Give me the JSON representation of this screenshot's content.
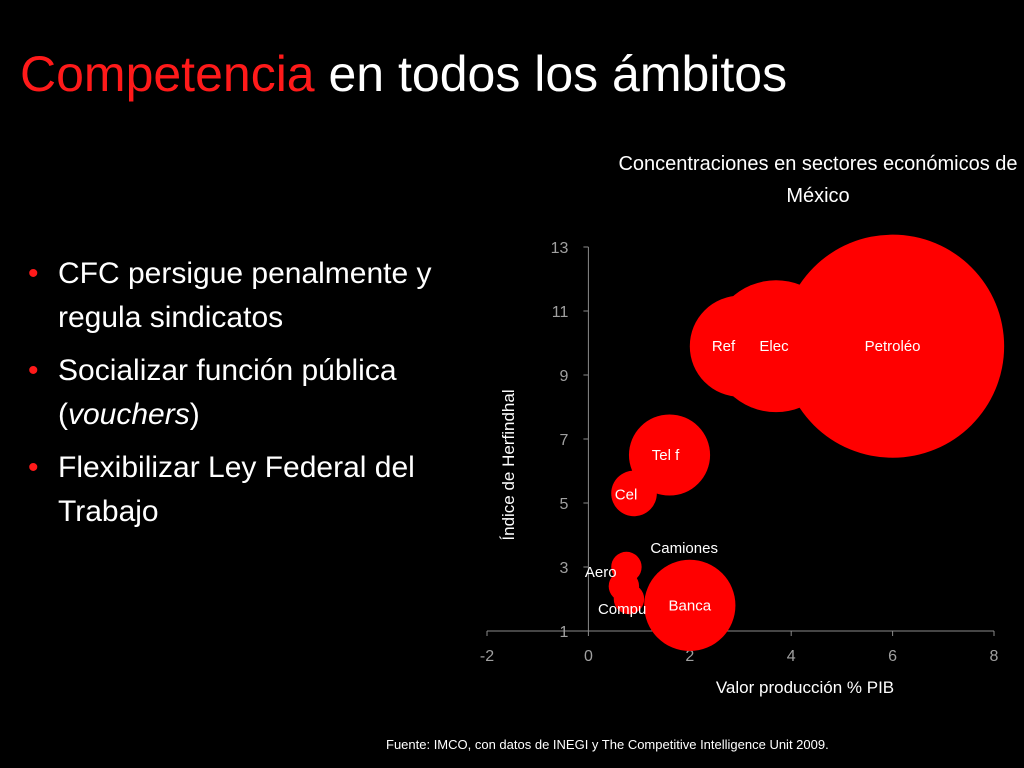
{
  "slide": {
    "title_accent": "Competencia",
    "title_rest": " en todos los ámbitos",
    "bullets": [
      {
        "text": "CFC persigue penalmente y regula sindicatos"
      },
      {
        "text_before": "Socializar función pública (",
        "text_italic": "vouchers",
        "text_after": ")"
      },
      {
        "text": "Flexibilizar Ley Federal del Trabajo"
      }
    ],
    "source": "Fuente: IMCO, con datos de INEGI  y The Competitive Intelligence Unit 2009."
  },
  "colors": {
    "accent": "#ff1a1a",
    "bubble": "#ff0000",
    "background": "#000000",
    "axis": "#8a8a8a"
  },
  "chart_data": {
    "type": "scatter",
    "subtype": "bubble",
    "title": "Concentraciones en sectores económicos de México",
    "xlabel": "Valor producción % PIB",
    "ylabel": "Índice de Herfindhal",
    "xlim": [
      -2,
      8
    ],
    "ylim": [
      1,
      13
    ],
    "xticks": [
      -2,
      0,
      2,
      4,
      6,
      8
    ],
    "yticks": [
      1,
      3,
      5,
      7,
      9,
      11,
      13
    ],
    "grid": false,
    "points": [
      {
        "label": "Compu",
        "x": 0.8,
        "y": 2.0,
        "size": 0.3
      },
      {
        "label": "Aero",
        "x": 0.7,
        "y": 2.4,
        "size": 0.3
      },
      {
        "label": "Camiones",
        "x": 0.75,
        "y": 3.0,
        "size": 0.3
      },
      {
        "label": "Banca",
        "x": 2.0,
        "y": 1.8,
        "size": 0.9
      },
      {
        "label": "Cel",
        "x": 0.9,
        "y": 5.3,
        "size": 0.45
      },
      {
        "label": "Tel f",
        "x": 1.6,
        "y": 6.5,
        "size": 0.8
      },
      {
        "label": "Ref",
        "x": 3.0,
        "y": 9.9,
        "size": 1.0
      },
      {
        "label": "Elec",
        "x": 3.7,
        "y": 9.9,
        "size": 1.3
      },
      {
        "label": "Petroléo",
        "x": 6.0,
        "y": 9.9,
        "size": 2.2
      }
    ]
  }
}
